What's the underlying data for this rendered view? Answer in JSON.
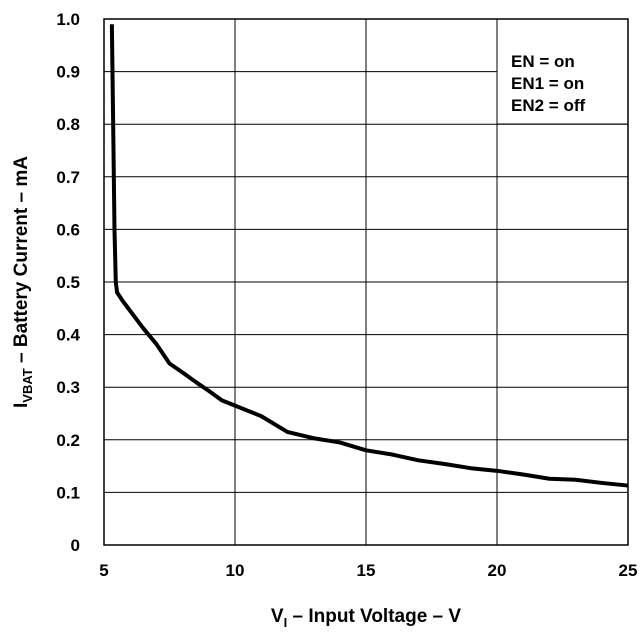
{
  "chart_data": {
    "type": "line",
    "title": "",
    "xlabel": {
      "prefix": "V",
      "subscript": "I",
      "text": " – Input Voltage  –  V"
    },
    "ylabel": {
      "prefix": "I",
      "subscript": "VBAT",
      "text": " – Battery Current  –  mA"
    },
    "xlim": [
      5,
      25
    ],
    "ylim": [
      0,
      1.0
    ],
    "xticks": [
      5,
      10,
      15,
      20,
      25
    ],
    "xtick_labels": [
      "5",
      "10",
      "15",
      "20",
      "25"
    ],
    "yticks": [
      0,
      0.1,
      0.2,
      0.3,
      0.4,
      0.5,
      0.6,
      0.7,
      0.8,
      0.9,
      1.0
    ],
    "ytick_labels": [
      "0",
      "0.1",
      "0.2",
      "0.3",
      "0.4",
      "0.5",
      "0.6",
      "0.7",
      "0.8",
      "0.9",
      "1.0"
    ],
    "grid": true,
    "annotation": {
      "lines": [
        "EN = on",
        "EN1 = on",
        "EN2 = off"
      ],
      "placement": "top-right"
    },
    "series": [
      {
        "color": "#000000",
        "points": [
          [
            5.3,
            0.99
          ],
          [
            5.35,
            0.8
          ],
          [
            5.4,
            0.6
          ],
          [
            5.45,
            0.5
          ],
          [
            5.5,
            0.48
          ],
          [
            5.7,
            0.465
          ],
          [
            6.0,
            0.445
          ],
          [
            6.5,
            0.412
          ],
          [
            7.0,
            0.382
          ],
          [
            7.5,
            0.345
          ],
          [
            8.0,
            0.328
          ],
          [
            8.5,
            0.31
          ],
          [
            9.0,
            0.293
          ],
          [
            9.5,
            0.275
          ],
          [
            10.0,
            0.265
          ],
          [
            11.0,
            0.245
          ],
          [
            12.0,
            0.215
          ],
          [
            13.0,
            0.203
          ],
          [
            14.0,
            0.195
          ],
          [
            15.0,
            0.18
          ],
          [
            16.0,
            0.172
          ],
          [
            17.0,
            0.161
          ],
          [
            18.0,
            0.154
          ],
          [
            19.0,
            0.146
          ],
          [
            20.0,
            0.141
          ],
          [
            21.0,
            0.134
          ],
          [
            22.0,
            0.126
          ],
          [
            23.0,
            0.124
          ],
          [
            24.0,
            0.118
          ],
          [
            25.0,
            0.113
          ]
        ]
      }
    ]
  }
}
